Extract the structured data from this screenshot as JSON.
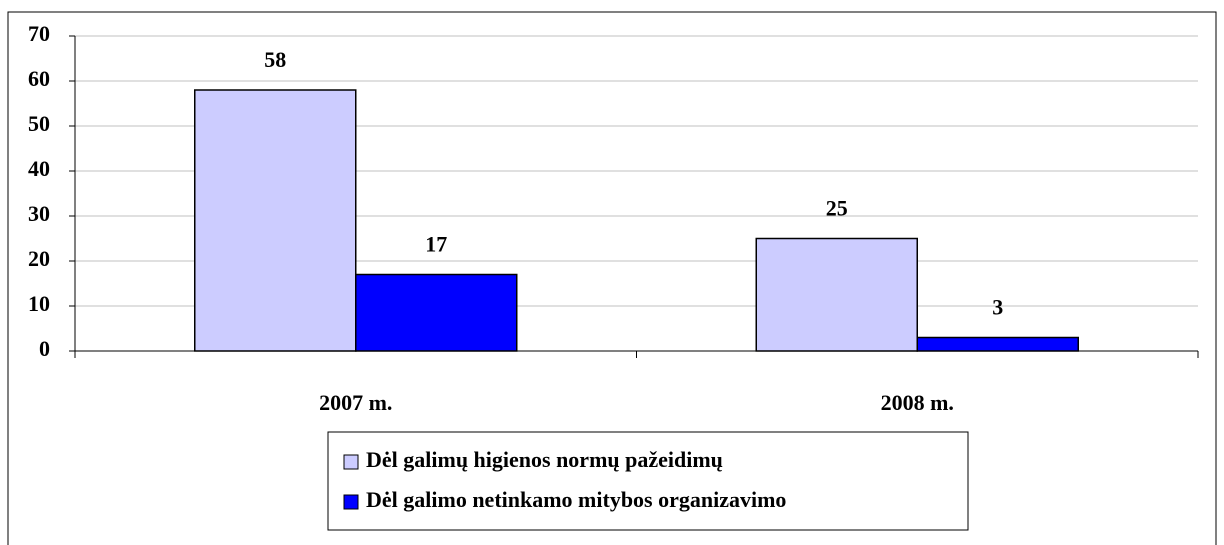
{
  "chart_data": {
    "type": "bar",
    "categories": [
      "2007 m.",
      "2008 m."
    ],
    "series": [
      {
        "name": "Dėl galimų higienos normų pažeidimų",
        "color": "#ccccff",
        "values": [
          58,
          25
        ]
      },
      {
        "name": "Dėl galimo netinkamo mitybos organizavimo",
        "color": "#0000ff",
        "values": [
          17,
          3
        ]
      }
    ],
    "ylim": [
      0,
      70
    ],
    "yticks": [
      0,
      10,
      20,
      30,
      40,
      50,
      60,
      70
    ],
    "grid": true,
    "legend": "bottom"
  }
}
